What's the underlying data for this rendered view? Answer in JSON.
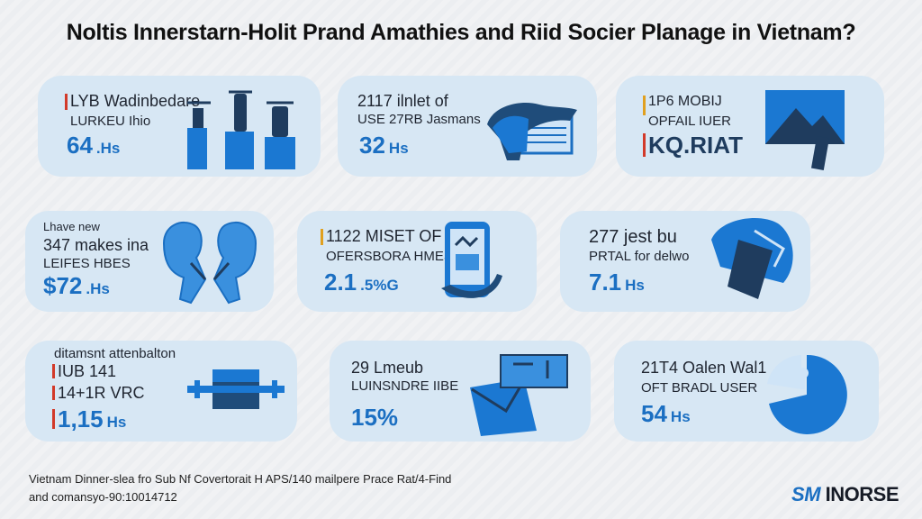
{
  "title": "Noltis Innerstarn-Holit Prand Amathies and Riid Socier Planage in Vietnam?",
  "cards": [
    {
      "l1": "LYB Wadinbedare",
      "l2": "LURKEU Ihio",
      "big": "64",
      "unit": ".Hs",
      "icon": "storage-silos-icon"
    },
    {
      "l1": "2117 ilnlet of",
      "l2": "USE 27RB Jasmans",
      "big": "32",
      "unit": "Hs",
      "icon": "hand-card-icon"
    },
    {
      "l1": "1P6 MOBIJ",
      "l2": "OPFAIL IUER",
      "big": "KQ.RIAT",
      "unit": "",
      "icon": "mountain-chart-icon"
    },
    {
      "l0": "Lhave new",
      "l1": "347 makes ina",
      "l2": "LEIFES HBES",
      "big": "$72",
      "unit": ".Hs",
      "icon": "people-icon"
    },
    {
      "l1": "1122 MISET OF",
      "l2": "OFERSBORA HMES",
      "big": "2.1",
      "unit": ".5%G",
      "icon": "smartphone-icon"
    },
    {
      "l1": "277 jest bu",
      "l2": "PRTAL for delwo",
      "big": "7.1",
      "unit": "Hs",
      "icon": "shield-card-icon"
    },
    {
      "l0": "ditamsnt attenbalton",
      "l1": "IUB 141",
      "l2": "14+1R VRC",
      "big": "1,15",
      "unit": "Hs",
      "icon": "cargo-box-icon"
    },
    {
      "l1": "29 Lmeub",
      "l2": "LUINSNDRE IIBE",
      "big": "15%",
      "unit": "",
      "icon": "envelope-icon"
    },
    {
      "l1": "21T4 Oalen Wal1",
      "l2": "OFT BRADL USER",
      "big": "54",
      "unit": "Hs",
      "icon": "pie-icon"
    }
  ],
  "footer": {
    "line1": "Vietnam Dinner-slea fro Sub Nf Covertorait H APS/140 mailpere Prace Rat/4-Find",
    "line2": "and comansyo-90:10014712"
  },
  "brand": {
    "prefix": "SM",
    "name": "INORSE"
  },
  "colors": {
    "accent": "#1b6fc2",
    "card": "#d7e7f4",
    "marker": "#d23a2a"
  }
}
